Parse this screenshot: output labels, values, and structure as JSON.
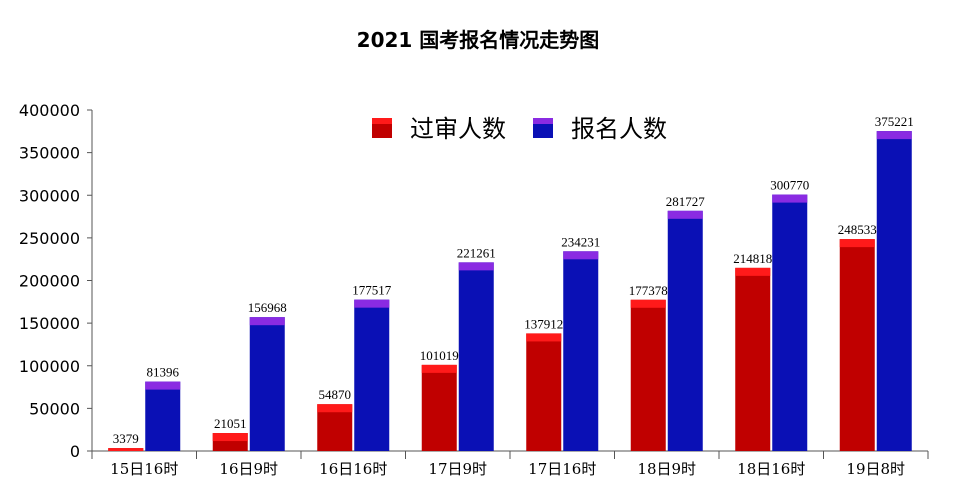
{
  "chart_data": {
    "type": "bar",
    "title": "2021 国考报名情况走势图",
    "categories": [
      "15日16时",
      "16日9时",
      "16日16时",
      "17日9时",
      "17日16时",
      "18日9时",
      "18日16时",
      "19日8时"
    ],
    "series": [
      {
        "name": "过审人数",
        "values": [
          3379,
          21051,
          54870,
          101019,
          137912,
          177378,
          214818,
          248533
        ]
      },
      {
        "name": "报名人数",
        "values": [
          81396,
          156968,
          177517,
          221261,
          234231,
          281727,
          300770,
          375221
        ]
      }
    ],
    "ylim": [
      0,
      400000
    ],
    "yticks": [
      "0",
      "50000",
      "100000",
      "150000",
      "200000",
      "250000",
      "300000",
      "350000",
      "400000"
    ],
    "grid": false,
    "legend": "top-center",
    "colors": {
      "series1_body": "#c00000",
      "series1_cap": "#ff1a1a",
      "series2_body": "#0a10b5",
      "series2_cap": "#8a2be2"
    }
  }
}
